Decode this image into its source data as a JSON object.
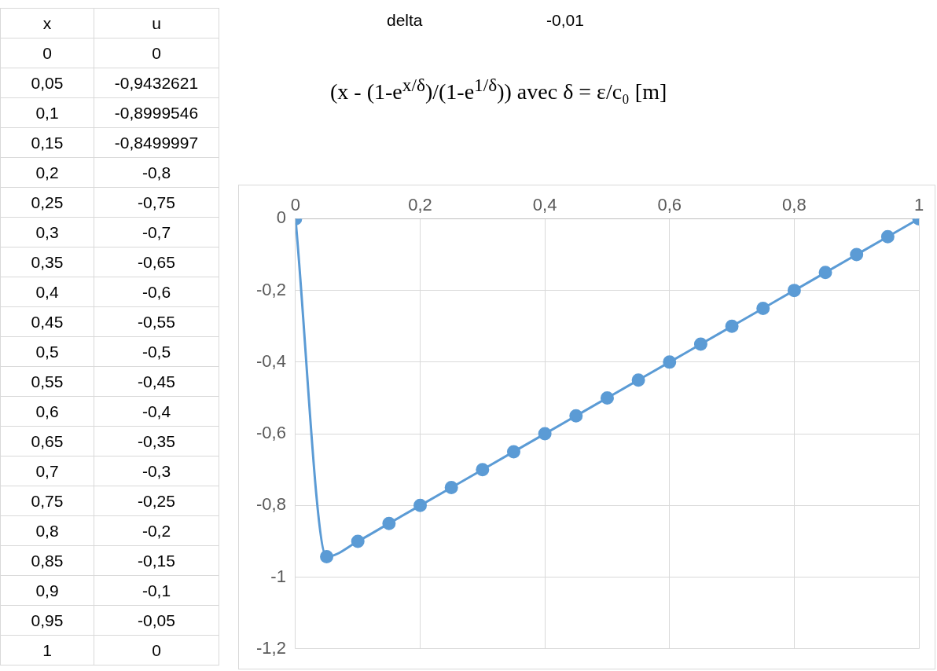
{
  "chart_data": {
    "type": "line",
    "title": "(x - (1-e$^{x/δ}$)/(1-e$^{1/δ}$)) avec δ = ε/c₀ [m]",
    "annotations": [
      "x",
      "u",
      "delta",
      "-0,01",
      "0",
      "0",
      "0,05",
      "-0,9432621",
      "0,1",
      "-0,8999546",
      "0,15",
      "-0,8499997",
      "0,2",
      "-0,8",
      "0,25",
      "-0,75",
      "0,3",
      "-0,7",
      "0,35",
      "-0,65",
      "0,4",
      "-0,6",
      "0,45",
      "-0,55",
      "0,5",
      "-0,5",
      "0,55",
      "-0,45",
      "0,6",
      "-0,4",
      "0,65",
      "-0,35",
      "0,7",
      "-0,3",
      "0,75",
      "-0,25",
      "0,8",
      "-0,2",
      "0,85",
      "-0,15",
      "0,9",
      "-0,1",
      "0,95",
      "-0,05",
      "1",
      "0"
    ],
    "x": [
      0,
      0.05,
      0.1,
      0.15,
      0.2,
      0.25,
      0.3,
      0.35,
      0.4,
      0.45,
      0.5,
      0.55,
      0.6,
      0.65,
      0.7,
      0.75,
      0.8,
      0.85,
      0.9,
      0.95,
      1
    ],
    "series": [
      {
        "color": "#5b9bd5",
        "values": [
          0,
          -0.943,
          -0.9,
          -0.85,
          -0.8,
          -0.75,
          -0.7,
          -0.65,
          -0.6,
          -0.55,
          -0.5,
          -0.45,
          -0.4,
          -0.35,
          -0.3,
          -0.25,
          -0.2,
          -0.15,
          -0.1,
          -0.05,
          0
        ]
      }
    ],
    "xlim": [
      0,
      1
    ],
    "xticks": [
      0,
      {
        "value": 0.2,
        "label": "0,2"
      },
      {
        "value": 0.4,
        "label": "0,4"
      },
      {
        "value": 0.6,
        "label": "0,6"
      },
      {
        "value": 0.8,
        "label": "0,8"
      },
      1
    ],
    "ylim": [
      -1.2,
      0
    ],
    "yticks": [
      {
        "value": -1.2,
        "label": "-1,2"
      },
      -1,
      {
        "value": -0.8,
        "label": "-0,8"
      },
      {
        "value": -0.6,
        "label": "-0,6"
      },
      {
        "value": -0.4,
        "label": "-0,4"
      },
      {
        "value": -0.2,
        "label": "-0,2"
      },
      0
    ],
    "grid": true,
    "marker": "circle",
    "line_style": "solid"
  }
}
